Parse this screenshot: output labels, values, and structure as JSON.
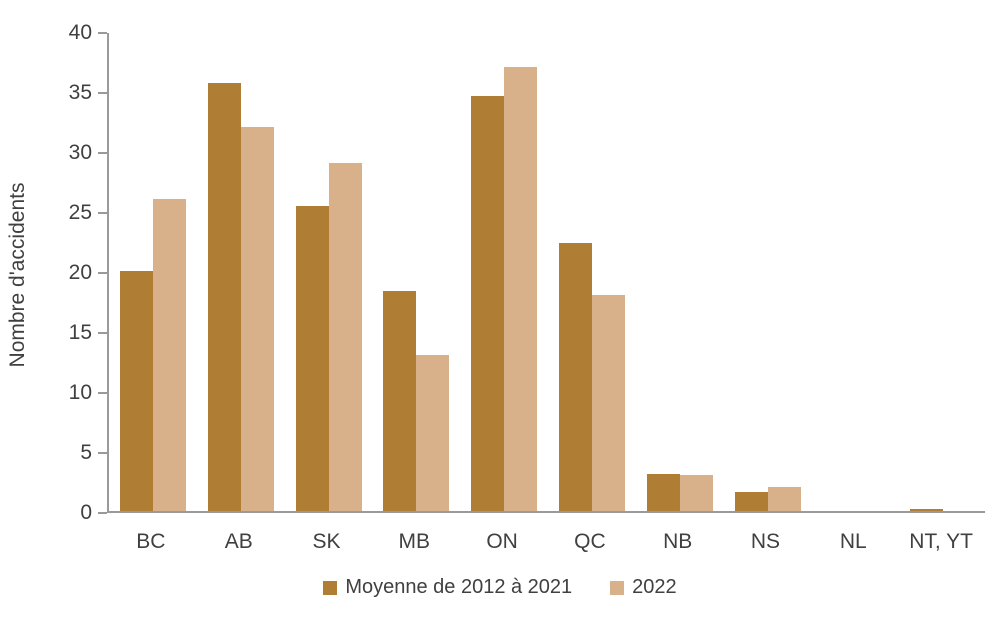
{
  "chart_data": {
    "type": "bar",
    "categories": [
      "BC",
      "AB",
      "SK",
      "MB",
      "ON",
      "QC",
      "NB",
      "NS",
      "NL",
      "NT, YT"
    ],
    "series": [
      {
        "name": "Moyenne de 2012 à 2021",
        "color": "#B07D35",
        "values": [
          20.0,
          35.7,
          25.4,
          18.3,
          34.6,
          22.3,
          3.1,
          1.6,
          0,
          0.2
        ]
      },
      {
        "name": "2022",
        "color": "#D8B08A",
        "values": [
          26,
          32,
          29,
          13,
          37,
          18,
          3,
          2,
          0,
          0
        ]
      }
    ],
    "title": "",
    "xlabel": "",
    "ylabel": "Nombre d'accidents",
    "ylim": [
      0,
      40
    ],
    "yticks": [
      0,
      5,
      10,
      15,
      20,
      25,
      30,
      35,
      40
    ],
    "grid": false,
    "legend_position": "bottom"
  },
  "colors": {
    "axis_line": "#9a9a9a",
    "text": "#404040",
    "background": "#ffffff"
  }
}
